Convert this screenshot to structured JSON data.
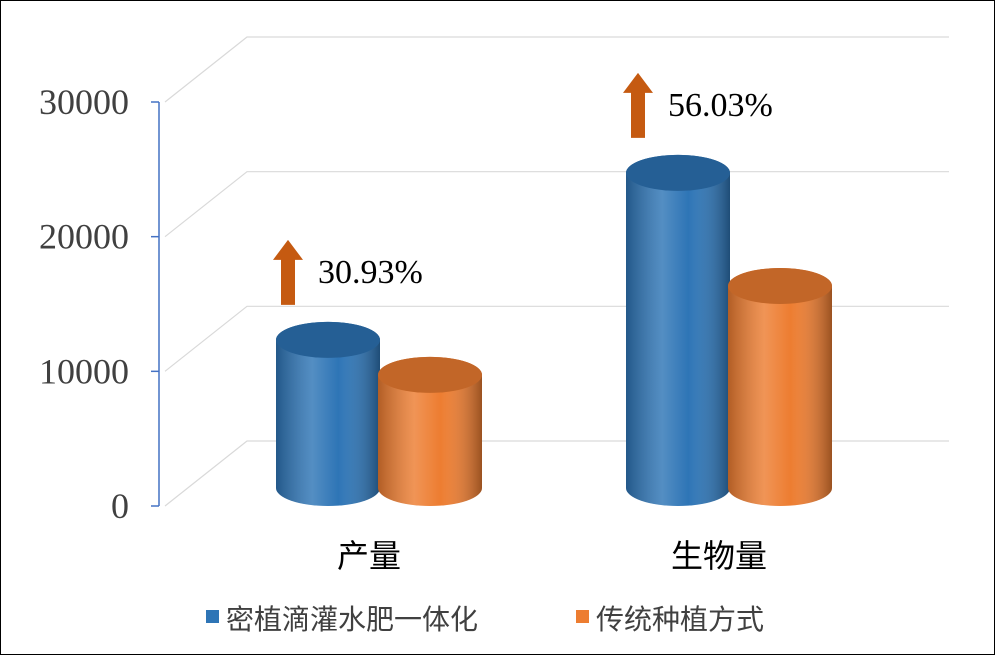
{
  "chart_data": {
    "type": "bar",
    "categories": [
      "产量",
      "生物量"
    ],
    "series": [
      {
        "name": "密植滴灌水肥一体化",
        "color": "#2e75b6",
        "values": [
          11000,
          23400
        ]
      },
      {
        "name": "传统种植方式",
        "color": "#ed7d31",
        "values": [
          8400,
          15000
        ]
      }
    ],
    "annotations": [
      "30.93%",
      "56.03%"
    ],
    "ylim": [
      0,
      30000
    ],
    "yticks": [
      0,
      10000,
      20000,
      30000
    ],
    "grid": true,
    "legend": "bottom"
  }
}
